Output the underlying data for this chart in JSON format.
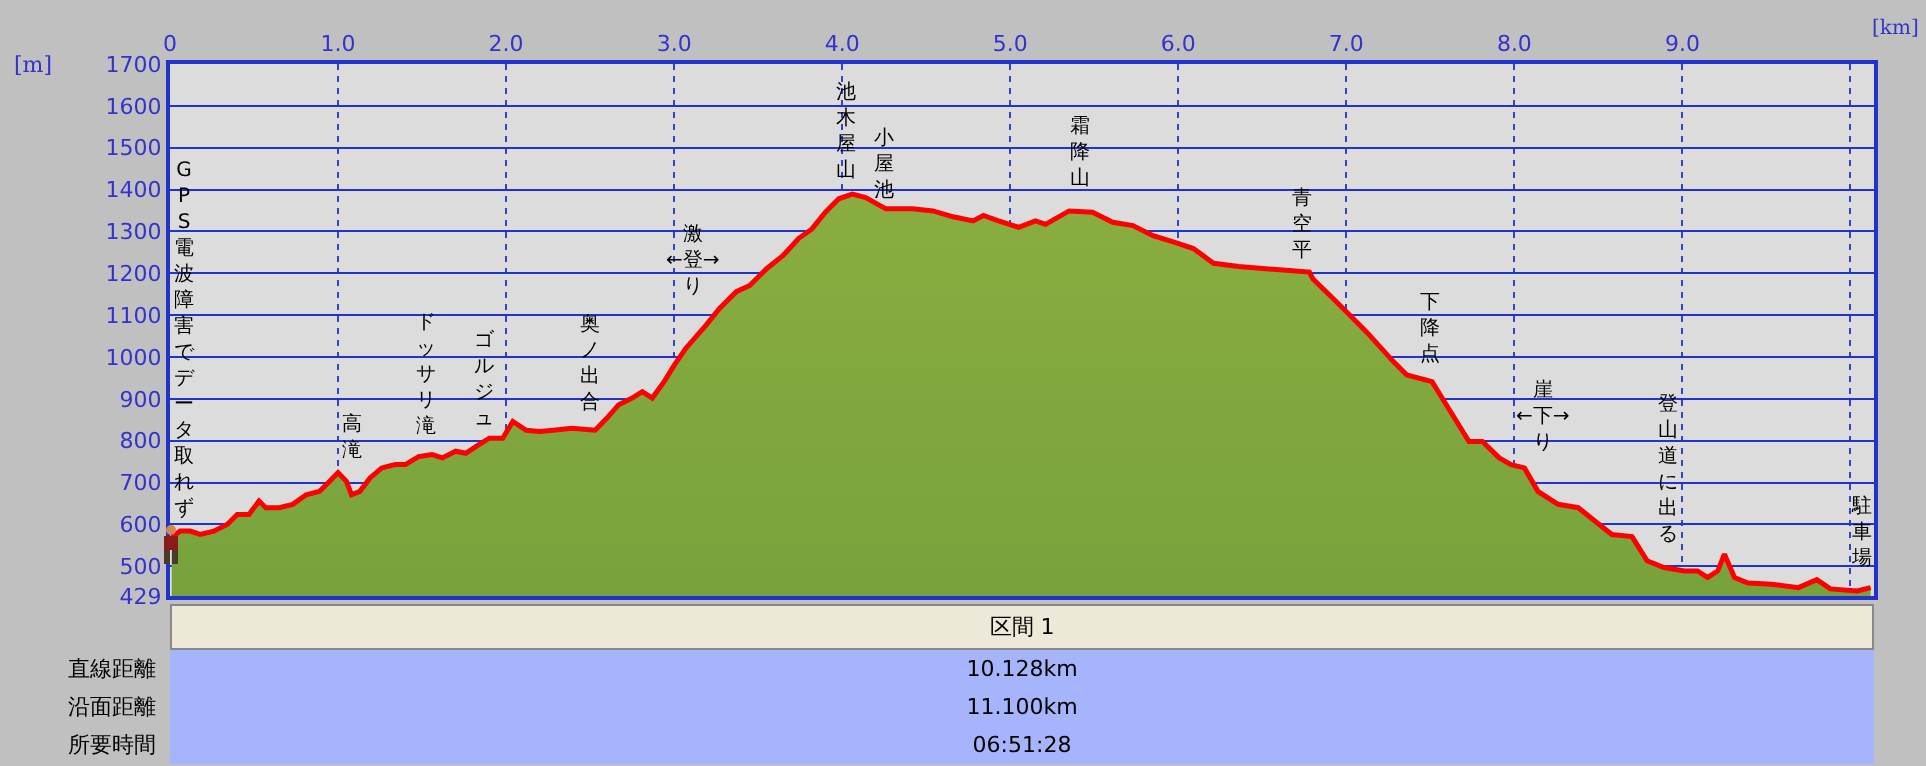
{
  "chart_data": {
    "type": "area",
    "xlabel": "[km]",
    "ylabel": "[m]",
    "xlim": [
      0,
      10.14
    ],
    "xticks": [
      0.0,
      {
        "value": 1,
        "label": "1.0"
      },
      {
        "value": 2,
        "label": "2.0"
      },
      {
        "value": 3,
        "label": "3.0"
      },
      {
        "value": 4,
        "label": "4.0"
      },
      {
        "value": 5,
        "label": "5.0"
      },
      {
        "value": 6,
        "label": "6.0"
      },
      {
        "value": 7,
        "label": "7.0"
      },
      {
        "value": 8,
        "label": "8.0"
      },
      {
        "value": 9,
        "label": "9.0"
      },
      {
        "value": 10,
        "label": null
      }
    ],
    "ylim": [
      429,
      1700
    ],
    "yticks": [
      429,
      500,
      600,
      700,
      800,
      900,
      1000,
      1100,
      1200,
      1300,
      1400,
      1500,
      1600,
      1700
    ],
    "grid": true,
    "marker": "none",
    "line_style": "solid",
    "series": [
      {
        "color": "#6f9e3a",
        "x": [
          0.01,
          0.06,
          0.12,
          0.18,
          0.26,
          0.34,
          0.4,
          0.47,
          0.53,
          0.57,
          0.65,
          0.73,
          0.81,
          0.89,
          0.95,
          1.0,
          1.05,
          1.08,
          1.13,
          1.19,
          1.26,
          1.34,
          1.4,
          1.48,
          1.56,
          1.62,
          1.7,
          1.76,
          1.82,
          1.9,
          1.98,
          2.04,
          2.12,
          2.2,
          2.28,
          2.39,
          2.53,
          2.6,
          2.67,
          2.75,
          2.81,
          2.87,
          2.94,
          3.0,
          3.07,
          3.19,
          3.27,
          3.37,
          3.45,
          3.55,
          3.65,
          3.74,
          3.82,
          3.9,
          3.98,
          4.06,
          4.14,
          4.26,
          4.42,
          4.54,
          4.66,
          4.78,
          4.84,
          4.93,
          5.05,
          5.15,
          5.21,
          5.35,
          5.49,
          5.61,
          5.73,
          5.85,
          5.97,
          6.09,
          6.21,
          6.36,
          6.52,
          6.68,
          6.78,
          6.8,
          6.9,
          7.0,
          7.12,
          7.28,
          7.36,
          7.51,
          7.57,
          7.73,
          7.81,
          7.91,
          7.98,
          8.06,
          8.14,
          8.26,
          8.38,
          8.58,
          8.7,
          8.79,
          8.89,
          9.01,
          9.09,
          9.15,
          9.21,
          9.25,
          9.31,
          9.39,
          9.53,
          9.69,
          9.8,
          9.88,
          10.04,
          10.12
        ],
        "values": [
          570,
          584,
          584,
          576,
          584,
          600,
          624,
          624,
          656,
          640,
          640,
          648,
          671,
          679,
          703,
          724,
          703,
          671,
          679,
          711,
          735,
          743,
          743,
          762,
          767,
          759,
          775,
          770,
          786,
          806,
          806,
          846,
          825,
          822,
          825,
          830,
          825,
          854,
          886,
          902,
          917,
          902,
          941,
          980,
          1021,
          1076,
          1116,
          1156,
          1171,
          1211,
          1243,
          1283,
          1306,
          1346,
          1378,
          1389,
          1381,
          1354,
          1354,
          1349,
          1335,
          1325,
          1338,
          1325,
          1310,
          1325,
          1317,
          1349,
          1346,
          1322,
          1314,
          1290,
          1275,
          1259,
          1224,
          1216,
          1211,
          1206,
          1203,
          1187,
          1148,
          1108,
          1060,
          989,
          957,
          941,
          902,
          798,
          798,
          759,
          743,
          735,
          679,
          648,
          640,
          576,
          571,
          513,
          497,
          489,
          489,
          473,
          489,
          529,
          473,
          460,
          457,
          449,
          468,
          446,
          441,
          449
        ]
      }
    ],
    "annotations": [
      "GPS電波障害でデータ取れず",
      "高滝",
      "ドッサリ滝",
      "ゴルジュ",
      "奥ノ出合",
      "激←登→り",
      "池木屋山",
      "小屋池",
      "霜降山",
      "青空平",
      "下降点",
      "崖←下→り",
      "登山道に出る",
      "駐車場",
      "区間 1",
      "直線距離",
      "10.128km",
      "沿面距離",
      "11.100km",
      "所要時間",
      "06:51:28"
    ]
  }
}
